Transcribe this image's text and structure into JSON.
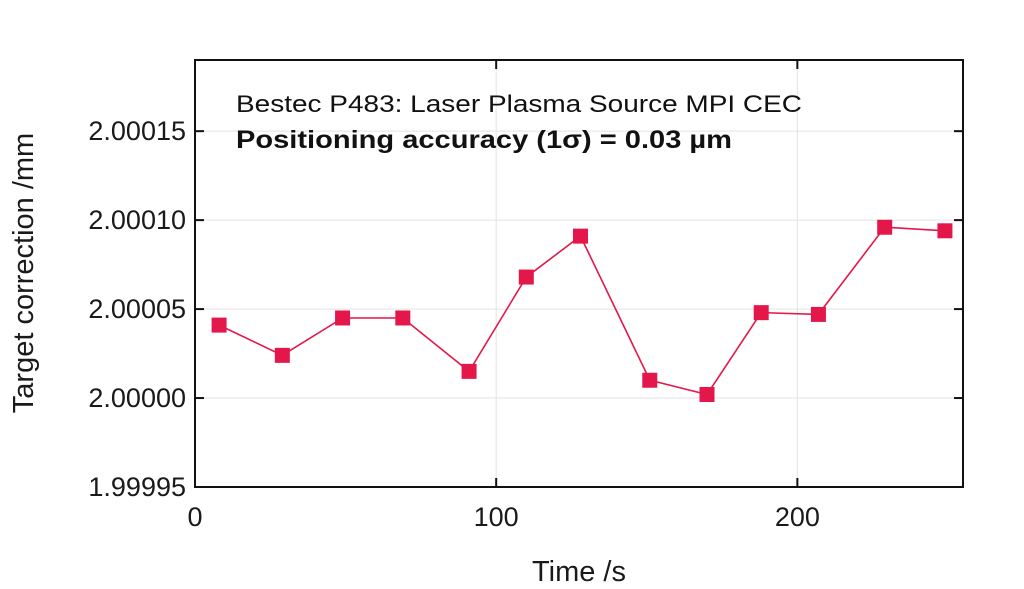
{
  "chart_data": {
    "type": "line",
    "title": "",
    "xlabel": "Time /s",
    "ylabel": "Target correction /mm",
    "xlim": [
      0,
      255
    ],
    "ylim": [
      1.99995,
      2.00019
    ],
    "xticks": [
      0,
      100,
      200
    ],
    "xtick_labels": [
      "0",
      "100",
      "200"
    ],
    "yticks": [
      1.99995,
      2.0,
      2.00005,
      2.0001,
      2.00015
    ],
    "ytick_labels": [
      "1.99995",
      "2.00000",
      "2.00005",
      "2.00010",
      "2.00015"
    ],
    "grid": true,
    "annotations": [
      "Bestec P483: Laser Plasma Source MPI CEC",
      "Positioning accuracy  (1σ) = 0.03 µm"
    ],
    "series": [
      {
        "color": "#e3174a",
        "marker": "square",
        "x": [
          8,
          29,
          49,
          69,
          91,
          110,
          128,
          151,
          170,
          188,
          207,
          229,
          249
        ],
        "y": [
          2.000041,
          2.000024,
          2.000045,
          2.000045,
          2.000015,
          2.000068,
          2.000091,
          2.00001,
          2.000002,
          2.000048,
          2.000047,
          2.000096,
          2.000094
        ]
      }
    ]
  }
}
